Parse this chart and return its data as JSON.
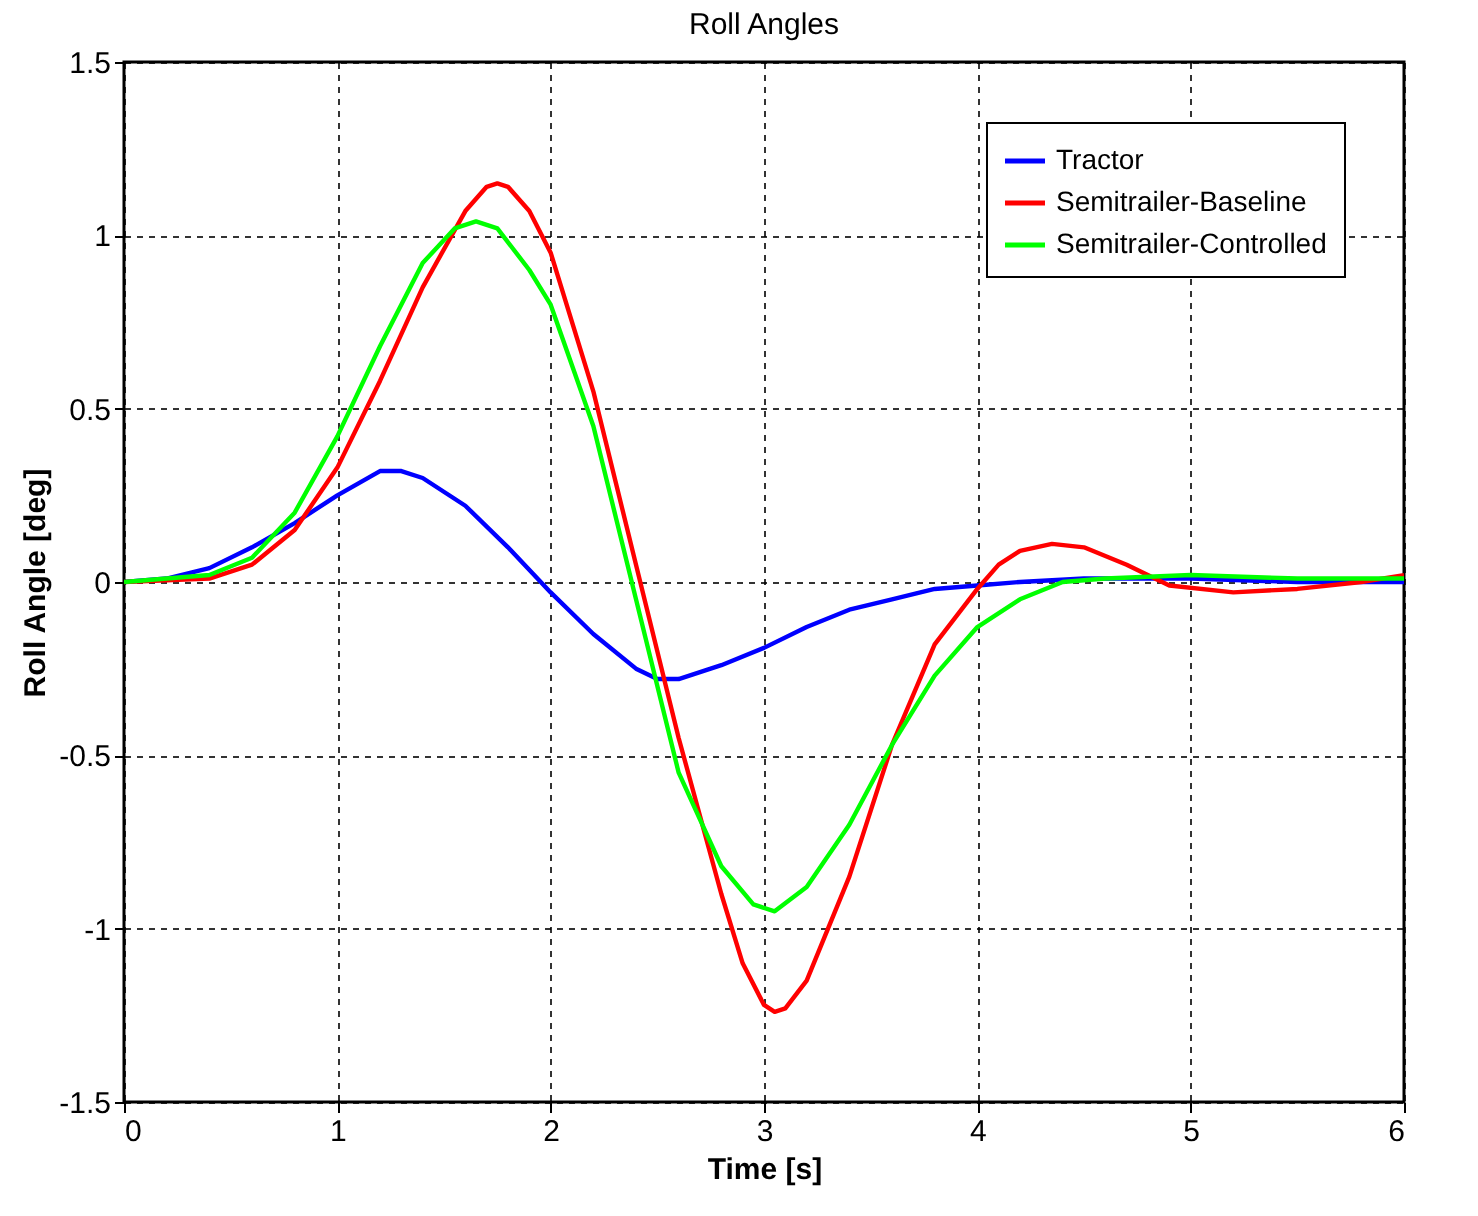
{
  "chart_data": {
    "type": "line",
    "title": "Roll Angles",
    "xlabel": "Time [s]",
    "ylabel": "Roll Angle [deg]",
    "xlim": [
      0,
      6
    ],
    "xticks": [
      0,
      1,
      2,
      3,
      4,
      5,
      6
    ],
    "ylim": [
      -1.5,
      1.5
    ],
    "yticks": [
      -1.5,
      -1,
      -0.5,
      0,
      0.5,
      1,
      1.5
    ],
    "grid": true,
    "legend": "top right",
    "line_style": "solid",
    "series": [
      {
        "name": "Tractor",
        "color": "#0000ff",
        "x": [
          0,
          0.2,
          0.4,
          0.6,
          0.8,
          1.0,
          1.2,
          1.3,
          1.4,
          1.6,
          1.8,
          2.0,
          2.2,
          2.4,
          2.5,
          2.6,
          2.8,
          3.0,
          3.2,
          3.4,
          3.6,
          3.8,
          4.0,
          4.2,
          4.5,
          5.0,
          5.5,
          6.0
        ],
        "values": [
          0,
          0.01,
          0.04,
          0.1,
          0.17,
          0.25,
          0.32,
          0.32,
          0.3,
          0.22,
          0.1,
          -0.03,
          -0.15,
          -0.25,
          -0.28,
          -0.28,
          -0.24,
          -0.19,
          -0.13,
          -0.08,
          -0.05,
          -0.02,
          -0.01,
          0,
          0.01,
          0.01,
          0,
          0
        ]
      },
      {
        "name": "Semitrailer-Baseline",
        "color": "#ff0000",
        "x": [
          0,
          0.4,
          0.6,
          0.8,
          1.0,
          1.2,
          1.4,
          1.6,
          1.7,
          1.75,
          1.8,
          1.9,
          2.0,
          2.2,
          2.4,
          2.6,
          2.8,
          2.9,
          3.0,
          3.05,
          3.1,
          3.2,
          3.4,
          3.6,
          3.8,
          4.0,
          4.1,
          4.2,
          4.35,
          4.5,
          4.7,
          4.9,
          5.2,
          5.5,
          5.8,
          6.0
        ],
        "values": [
          0,
          0.01,
          0.05,
          0.15,
          0.33,
          0.58,
          0.85,
          1.07,
          1.14,
          1.15,
          1.14,
          1.07,
          0.95,
          0.55,
          0.05,
          -0.45,
          -0.9,
          -1.1,
          -1.22,
          -1.24,
          -1.23,
          -1.15,
          -0.85,
          -0.47,
          -0.18,
          -0.02,
          0.05,
          0.09,
          0.11,
          0.1,
          0.05,
          -0.01,
          -0.03,
          -0.02,
          0,
          0.02
        ]
      },
      {
        "name": "Semitrailer-Controlled",
        "color": "#00ff00",
        "x": [
          0,
          0.4,
          0.6,
          0.8,
          1.0,
          1.2,
          1.4,
          1.55,
          1.65,
          1.75,
          1.9,
          2.0,
          2.2,
          2.4,
          2.6,
          2.8,
          2.95,
          3.05,
          3.2,
          3.4,
          3.6,
          3.8,
          4.0,
          4.2,
          4.4,
          4.6,
          5.0,
          5.5,
          6.0
        ],
        "values": [
          0,
          0.02,
          0.07,
          0.2,
          0.42,
          0.68,
          0.92,
          1.02,
          1.04,
          1.02,
          0.9,
          0.8,
          0.45,
          -0.05,
          -0.55,
          -0.82,
          -0.93,
          -0.95,
          -0.88,
          -0.7,
          -0.47,
          -0.27,
          -0.13,
          -0.05,
          0,
          0.01,
          0.02,
          0.01,
          0.01
        ]
      }
    ]
  }
}
